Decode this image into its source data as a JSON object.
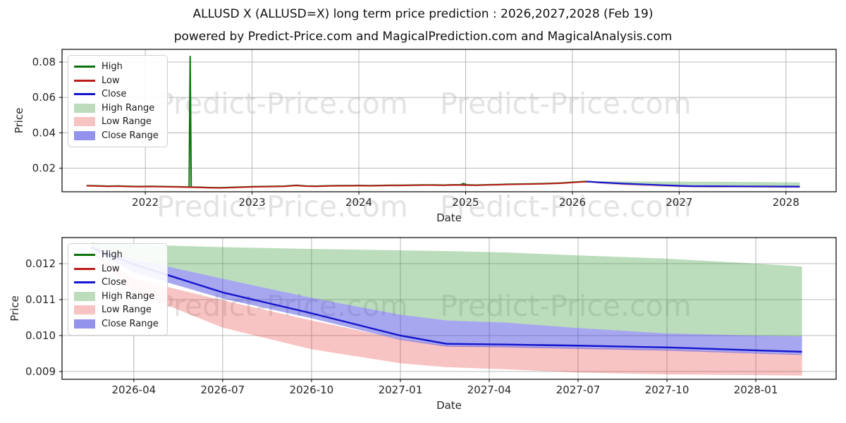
{
  "header": {
    "title": "ALLUSD X (ALLUSD=X) long term price prediction : 2026,2027,2028 (Feb 19)",
    "subtitle": "powered by Predict-Price.com and MagicalPrediction.com and MagicalAnalysis.com"
  },
  "watermark": {
    "text": "Predict-Price.com",
    "color": "#e3e3e3"
  },
  "legend": {
    "items": [
      {
        "label": "High",
        "swatch": "line",
        "color": "#0b720b"
      },
      {
        "label": "Low",
        "swatch": "line",
        "color": "#bb1b1b"
      },
      {
        "label": "Close",
        "swatch": "line",
        "color": "#1414cc"
      },
      {
        "label": "High Range",
        "swatch": "patch",
        "color": "#bcdcbc"
      },
      {
        "label": "Low Range",
        "swatch": "patch",
        "color": "#f8c3c3"
      },
      {
        "label": "Close Range",
        "swatch": "patch",
        "color": "#9393ee"
      }
    ]
  },
  "colors": {
    "high": "#0b720b",
    "low": "#bb1b1b",
    "close": "#1414cc",
    "high_range_fill": "rgba(44,150,44,0.32)",
    "low_range_fill": "rgba(230,40,40,0.28)",
    "close_range_fill": "rgba(59,59,222,0.45)",
    "grid": "#b0b0b0",
    "spine": "#000000",
    "text": "#262626"
  },
  "chart_data": [
    {
      "type": "line",
      "xlabel": "Date",
      "ylabel": "Price",
      "x_range": [
        2021.22,
        2028.47
      ],
      "y_range": [
        0.00665,
        0.0872
      ],
      "x_ticks": [
        {
          "v": 2022,
          "label": "2022"
        },
        {
          "v": 2023,
          "label": "2023"
        },
        {
          "v": 2024,
          "label": "2024"
        },
        {
          "v": 2025,
          "label": "2025"
        },
        {
          "v": 2026,
          "label": "2026"
        },
        {
          "v": 2027,
          "label": "2027"
        },
        {
          "v": 2028,
          "label": "2028"
        }
      ],
      "y_ticks": [
        {
          "v": 0.02,
          "label": "0.02"
        },
        {
          "v": 0.04,
          "label": "0.04"
        },
        {
          "v": 0.06,
          "label": "0.06"
        },
        {
          "v": 0.08,
          "label": "0.08"
        }
      ],
      "bands": [
        {
          "name": "High Range",
          "color_key": "high_range_fill",
          "x": [
            2026.13,
            2026.25,
            2026.5,
            2026.75,
            2027.0,
            2027.13,
            2027.3,
            2027.5,
            2027.75,
            2028.0,
            2028.13
          ],
          "top": [
            0.01258,
            0.01253,
            0.01246,
            0.01241,
            0.01237,
            0.01235,
            0.01231,
            0.01223,
            0.01214,
            0.012,
            0.01192
          ],
          "bottom": [
            0.0125,
            0.01213,
            0.01158,
            0.01105,
            0.01058,
            0.01042,
            0.01036,
            0.01021,
            0.01006,
            0.01,
            0.00998
          ]
        },
        {
          "name": "Low Range",
          "color_key": "low_range_fill",
          "x": [
            2026.13,
            2026.25,
            2026.5,
            2026.75,
            2027.0,
            2027.13,
            2027.3,
            2027.5,
            2027.75,
            2028.0,
            2028.13
          ],
          "top": [
            0.01236,
            0.01158,
            0.01098,
            0.01042,
            0.0099,
            0.00972,
            0.0097,
            0.00966,
            0.00961,
            0.00952,
            0.00948
          ],
          "bottom": [
            0.0123,
            0.01122,
            0.01022,
            0.00962,
            0.00923,
            0.00912,
            0.00906,
            0.00897,
            0.00892,
            0.0089,
            0.00889
          ]
        },
        {
          "name": "Close Range",
          "color_key": "close_range_fill",
          "x": [
            2026.13,
            2026.25,
            2026.5,
            2026.75,
            2027.0,
            2027.13,
            2027.3,
            2027.5,
            2027.75,
            2028.0,
            2028.13
          ],
          "top": [
            0.0125,
            0.01213,
            0.01158,
            0.01105,
            0.01058,
            0.01042,
            0.01036,
            0.01021,
            0.01006,
            0.01,
            0.00998
          ],
          "bottom": [
            0.0124,
            0.01175,
            0.01103,
            0.01048,
            0.00988,
            0.00969,
            0.00967,
            0.00963,
            0.00958,
            0.0095,
            0.00946
          ]
        }
      ],
      "lines": [
        {
          "name": "High",
          "color_key": "high",
          "width": 2,
          "x": [
            2021.45,
            2021.55,
            2021.65,
            2021.75,
            2021.85,
            2021.95,
            2022.05,
            2022.15,
            2022.25,
            2022.35,
            2022.41,
            2022.42,
            2022.43,
            2022.5,
            2022.6,
            2022.7,
            2022.8,
            2022.9,
            2023.0,
            2023.1,
            2023.2,
            2023.3,
            2023.42,
            2023.5,
            2023.6,
            2023.7,
            2023.8,
            2023.9,
            2024.0,
            2024.1,
            2024.2,
            2024.3,
            2024.4,
            2024.5,
            2024.6,
            2024.7,
            2024.8,
            2024.9,
            2024.95,
            2024.98,
            2025.01,
            2025.1,
            2025.2,
            2025.3,
            2025.4,
            2025.5,
            2025.6,
            2025.7,
            2025.8,
            2025.9,
            2026.0,
            2026.08,
            2026.13
          ],
          "y": [
            0.01015,
            0.01005,
            0.00985,
            0.00995,
            0.00975,
            0.00965,
            0.00975,
            0.00965,
            0.00955,
            0.00945,
            0.00935,
            0.0832,
            0.00935,
            0.00925,
            0.00905,
            0.00895,
            0.00915,
            0.00935,
            0.00955,
            0.00965,
            0.00975,
            0.00985,
            0.01035,
            0.00995,
            0.00985,
            0.01005,
            0.01015,
            0.01015,
            0.01025,
            0.01015,
            0.01025,
            0.01035,
            0.01035,
            0.01045,
            0.01055,
            0.01055,
            0.01045,
            0.01065,
            0.0106,
            0.0113,
            0.0106,
            0.01045,
            0.01065,
            0.01075,
            0.01095,
            0.01105,
            0.01115,
            0.01125,
            0.01145,
            0.01165,
            0.01205,
            0.01235,
            0.01255
          ]
        },
        {
          "name": "Low",
          "color_key": "low",
          "width": 2,
          "x": [
            2021.45,
            2021.55,
            2021.65,
            2021.75,
            2021.85,
            2021.95,
            2022.05,
            2022.15,
            2022.25,
            2022.35,
            2022.42,
            2022.5,
            2022.6,
            2022.7,
            2022.8,
            2022.9,
            2023.0,
            2023.1,
            2023.2,
            2023.3,
            2023.42,
            2023.5,
            2023.6,
            2023.7,
            2023.8,
            2023.9,
            2024.0,
            2024.1,
            2024.2,
            2024.3,
            2024.4,
            2024.5,
            2024.6,
            2024.7,
            2024.8,
            2024.9,
            2025.0,
            2025.1,
            2025.2,
            2025.3,
            2025.4,
            2025.5,
            2025.6,
            2025.7,
            2025.8,
            2025.9,
            2026.0,
            2026.08,
            2026.17
          ],
          "y": [
            0.01,
            0.0099,
            0.0097,
            0.0098,
            0.0096,
            0.0095,
            0.0096,
            0.0095,
            0.0094,
            0.0093,
            0.0092,
            0.0091,
            0.0089,
            0.0088,
            0.009,
            0.0092,
            0.0094,
            0.0095,
            0.0096,
            0.0097,
            0.0102,
            0.0098,
            0.0097,
            0.0099,
            0.01,
            0.01,
            0.0101,
            0.01,
            0.0101,
            0.0102,
            0.0102,
            0.0103,
            0.0104,
            0.0104,
            0.0103,
            0.0105,
            0.0104,
            0.0103,
            0.0105,
            0.0106,
            0.0108,
            0.0109,
            0.011,
            0.0111,
            0.0113,
            0.0115,
            0.0119,
            0.0122,
            0.0124
          ]
        },
        {
          "name": "Close",
          "color_key": "close",
          "width": 2.2,
          "x": [
            2026.13,
            2026.25,
            2026.5,
            2026.75,
            2027.0,
            2027.13,
            2027.3,
            2027.5,
            2027.75,
            2028.0,
            2028.13
          ],
          "y": [
            0.01245,
            0.01198,
            0.0112,
            0.01062,
            0.01,
            0.00977,
            0.00975,
            0.00972,
            0.00967,
            0.00959,
            0.00955
          ]
        }
      ]
    },
    {
      "type": "line",
      "xlabel": "Date",
      "ylabel": "Price",
      "x_range": [
        2026.048,
        2028.226
      ],
      "y_range": [
        0.008784,
        0.012725
      ],
      "x_ticks": [
        {
          "v": 2026.25,
          "label": "2026-04"
        },
        {
          "v": 2026.5,
          "label": "2026-07"
        },
        {
          "v": 2026.75,
          "label": "2026-10"
        },
        {
          "v": 2027.0,
          "label": "2027-01"
        },
        {
          "v": 2027.25,
          "label": "2027-04"
        },
        {
          "v": 2027.5,
          "label": "2027-07"
        },
        {
          "v": 2027.75,
          "label": "2027-10"
        },
        {
          "v": 2028.0,
          "label": "2028-01"
        }
      ],
      "y_ticks": [
        {
          "v": 0.009,
          "label": "0.009"
        },
        {
          "v": 0.01,
          "label": "0.010"
        },
        {
          "v": 0.011,
          "label": "0.011"
        },
        {
          "v": 0.012,
          "label": "0.012"
        }
      ],
      "bands": [
        {
          "name": "High Range",
          "color_key": "high_range_fill",
          "x": [
            2026.13,
            2026.25,
            2026.5,
            2026.75,
            2027.0,
            2027.13,
            2027.3,
            2027.5,
            2027.75,
            2028.0,
            2028.13
          ],
          "top": [
            0.01258,
            0.01253,
            0.01246,
            0.01241,
            0.01237,
            0.01235,
            0.01231,
            0.01223,
            0.01214,
            0.012,
            0.01192
          ],
          "bottom": [
            0.0125,
            0.01213,
            0.01158,
            0.01105,
            0.01058,
            0.01042,
            0.01036,
            0.01021,
            0.01006,
            0.01,
            0.00998
          ]
        },
        {
          "name": "Low Range",
          "color_key": "low_range_fill",
          "x": [
            2026.13,
            2026.25,
            2026.5,
            2026.75,
            2027.0,
            2027.13,
            2027.3,
            2027.5,
            2027.75,
            2028.0,
            2028.13
          ],
          "top": [
            0.01236,
            0.01158,
            0.01098,
            0.01042,
            0.0099,
            0.00972,
            0.0097,
            0.00966,
            0.00961,
            0.00952,
            0.00948
          ],
          "bottom": [
            0.0123,
            0.01122,
            0.01022,
            0.00962,
            0.00923,
            0.00912,
            0.00906,
            0.00897,
            0.00892,
            0.0089,
            0.00889
          ]
        },
        {
          "name": "Close Range",
          "color_key": "close_range_fill",
          "x": [
            2026.13,
            2026.25,
            2026.5,
            2026.75,
            2027.0,
            2027.13,
            2027.3,
            2027.5,
            2027.75,
            2028.0,
            2028.13
          ],
          "top": [
            0.0125,
            0.01213,
            0.01158,
            0.01105,
            0.01058,
            0.01042,
            0.01036,
            0.01021,
            0.01006,
            0.01,
            0.00998
          ],
          "bottom": [
            0.0124,
            0.01175,
            0.01103,
            0.01048,
            0.00988,
            0.00969,
            0.00967,
            0.00963,
            0.00958,
            0.0095,
            0.00946
          ]
        }
      ],
      "lines": [
        {
          "name": "Close",
          "color_key": "close",
          "width": 2.4,
          "x": [
            2026.13,
            2026.25,
            2026.5,
            2026.75,
            2027.0,
            2027.13,
            2027.3,
            2027.5,
            2027.75,
            2028.0,
            2028.13
          ],
          "y": [
            0.01245,
            0.01198,
            0.0112,
            0.01062,
            0.01,
            0.00977,
            0.00975,
            0.00972,
            0.00967,
            0.00959,
            0.00955
          ]
        }
      ]
    }
  ]
}
